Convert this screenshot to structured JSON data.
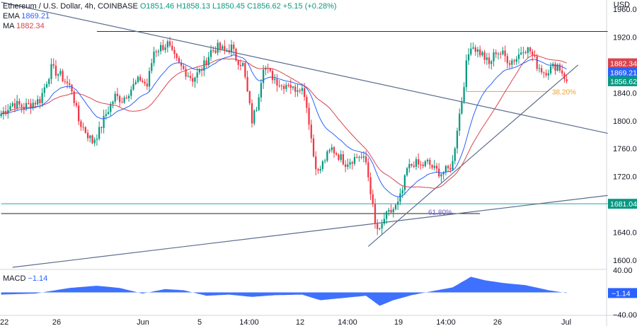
{
  "header": {
    "symbol": "Ethereum / U.S. Dollar",
    "timeframe": "4h",
    "exchange": "COINBASE",
    "open": "O1851.46",
    "high": "H1858.13",
    "low": "L1850.45",
    "close": "C1856.62",
    "change": "+5.15 (+0.28%)"
  },
  "indicators": {
    "ema": {
      "label": "EMA",
      "value": "1869.21",
      "color": "#2962ff"
    },
    "ma": {
      "label": "MA",
      "value": "1882.34",
      "color": "#d9434e"
    },
    "macd": {
      "label": "MACD",
      "value": "−1.14"
    }
  },
  "axis": {
    "currency": "USD",
    "price_ticks": [
      "1960.00",
      "1920.00",
      "1880.00",
      "1840.00",
      "1800.00",
      "1760.00",
      "1720.00",
      "1680.00",
      "1640.00",
      "1600.00"
    ],
    "macd_ticks": [
      "40.00",
      "−40.00"
    ],
    "time_ticks": [
      "22",
      "26",
      "Jun",
      "5",
      "14:00",
      "12",
      "14:00",
      "19",
      "14:00",
      "26",
      "Jul"
    ]
  },
  "price_labels": [
    {
      "text": "1882.34",
      "price": 1882.34,
      "color": "#d9434e"
    },
    {
      "text": "1869.21",
      "price": 1869.21,
      "color": "#2962ff"
    },
    {
      "text": "1856.62",
      "price": 1856.62,
      "color": "#089981"
    },
    {
      "text": "1681.04",
      "price": 1681.04,
      "color": "#089981"
    }
  ],
  "macd_label": {
    "text": "−1.14",
    "color": "#2962ff"
  },
  "fib_labels": [
    {
      "text": "38.20%",
      "price": 1842,
      "color": "#f0a030"
    },
    {
      "text": "61.80%",
      "price": 1669.5,
      "color": "#6a5acd"
    }
  ],
  "colors": {
    "up": "#089981",
    "down": "#f23645",
    "macd_fill": "#2962ff",
    "trend": "#5b6d8f"
  },
  "chart_data": {
    "type": "candlestick",
    "ylim": [
      1590,
      1968
    ],
    "macd_ylim": [
      -40,
      40
    ],
    "close_path": [
      [
        0,
        1810
      ],
      [
        5,
        1825
      ],
      [
        10,
        1820
      ],
      [
        17,
        1830
      ],
      [
        22,
        1875
      ],
      [
        26,
        1865
      ],
      [
        31,
        1845
      ],
      [
        34,
        1800
      ],
      [
        38,
        1780
      ],
      [
        40,
        1770
      ],
      [
        43,
        1785
      ],
      [
        46,
        1810
      ],
      [
        50,
        1835
      ],
      [
        53,
        1830
      ],
      [
        58,
        1850
      ],
      [
        61,
        1860
      ],
      [
        64,
        1850
      ],
      [
        67,
        1900
      ],
      [
        70,
        1905
      ],
      [
        73,
        1910
      ],
      [
        75,
        1895
      ],
      [
        78,
        1880
      ],
      [
        81,
        1870
      ],
      [
        84,
        1860
      ],
      [
        87,
        1870
      ],
      [
        89,
        1880
      ],
      [
        92,
        1900
      ],
      [
        95,
        1905
      ],
      [
        98,
        1900
      ],
      [
        101,
        1905
      ],
      [
        103,
        1890
      ],
      [
        106,
        1880
      ],
      [
        108,
        1840
      ],
      [
        110,
        1800
      ],
      [
        112,
        1820
      ],
      [
        115,
        1880
      ],
      [
        117,
        1870
      ],
      [
        120,
        1860
      ],
      [
        123,
        1850
      ],
      [
        126,
        1855
      ],
      [
        128,
        1845
      ],
      [
        131,
        1850
      ],
      [
        133,
        1840
      ],
      [
        135,
        1800
      ],
      [
        137,
        1750
      ],
      [
        139,
        1725
      ],
      [
        142,
        1745
      ],
      [
        145,
        1760
      ],
      [
        148,
        1750
      ],
      [
        151,
        1740
      ],
      [
        154,
        1745
      ],
      [
        157,
        1750
      ],
      [
        160,
        1740
      ],
      [
        162,
        1700
      ],
      [
        164,
        1650
      ],
      [
        166,
        1640
      ],
      [
        168,
        1660
      ],
      [
        171,
        1670
      ],
      [
        174,
        1680
      ],
      [
        176,
        1700
      ],
      [
        178,
        1730
      ],
      [
        181,
        1740
      ],
      [
        184,
        1735
      ],
      [
        187,
        1740
      ],
      [
        190,
        1730
      ],
      [
        193,
        1725
      ],
      [
        196,
        1730
      ],
      [
        198,
        1740
      ],
      [
        200,
        1790
      ],
      [
        202,
        1830
      ],
      [
        204,
        1880
      ],
      [
        206,
        1910
      ],
      [
        209,
        1900
      ],
      [
        211,
        1895
      ],
      [
        214,
        1880
      ],
      [
        217,
        1900
      ],
      [
        220,
        1895
      ],
      [
        223,
        1885
      ],
      [
        226,
        1890
      ],
      [
        229,
        1905
      ],
      [
        232,
        1900
      ],
      [
        235,
        1880
      ],
      [
        238,
        1870
      ],
      [
        241,
        1875
      ],
      [
        244,
        1880
      ],
      [
        246,
        1870
      ],
      [
        248,
        1856.62
      ]
    ],
    "macd_path": [
      [
        0,
        -4
      ],
      [
        15,
        -2
      ],
      [
        30,
        8
      ],
      [
        42,
        12
      ],
      [
        52,
        8
      ],
      [
        62,
        -2
      ],
      [
        72,
        6
      ],
      [
        80,
        4
      ],
      [
        90,
        -6
      ],
      [
        100,
        -4
      ],
      [
        110,
        -8
      ],
      [
        120,
        -5
      ],
      [
        132,
        -4
      ],
      [
        140,
        -14
      ],
      [
        150,
        -10
      ],
      [
        160,
        -6
      ],
      [
        166,
        -24
      ],
      [
        172,
        -14
      ],
      [
        180,
        -5
      ],
      [
        190,
        3
      ],
      [
        198,
        9
      ],
      [
        206,
        28
      ],
      [
        212,
        22
      ],
      [
        220,
        17
      ],
      [
        230,
        13
      ],
      [
        240,
        4
      ],
      [
        248,
        -1.14
      ]
    ],
    "levels": [
      {
        "price": 1928,
        "from": 42,
        "to": 266,
        "color": "#333"
      },
      {
        "price": 1681.04,
        "from": 0,
        "to": 266,
        "color": "#26a6a6"
      },
      {
        "price": 1667,
        "from": 0,
        "to": 210,
        "color": "#222"
      },
      {
        "price": 1842,
        "from": 204,
        "to": 240,
        "color": "#f0a030"
      }
    ],
    "trendlines": [
      {
        "from": [
          0,
          1970
        ],
        "to": [
          266,
          1782
        ]
      },
      {
        "from": [
          5,
          1590
        ],
        "to": [
          266,
          1693
        ]
      },
      {
        "from": [
          161,
          1620
        ],
        "to": [
          253,
          1880
        ]
      }
    ],
    "bars": 266
  }
}
